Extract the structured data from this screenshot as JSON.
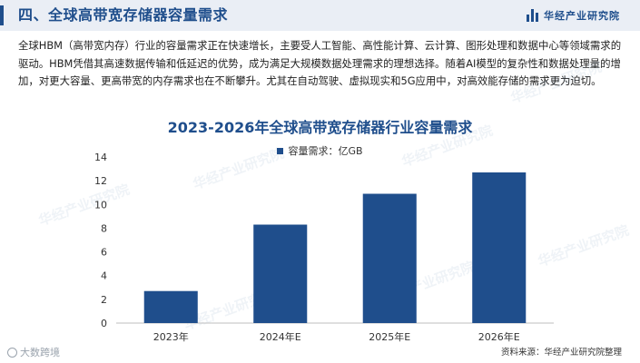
{
  "header": {
    "title": "四、全球高带宽存储器容量需求",
    "brand": "华经产业研究院"
  },
  "intro": "全球HBM（高带宽内存）行业的容量需求正在快速增长，主要受人工智能、高性能计算、云计算、图形处理和数据中心等领域需求的驱动。HBM凭借其高速数据传输和低延迟的优势，成为满足大规模数据处理需求的理想选择。随着AI模型的复杂性和数据处理量的增加，对更大容量、更高带宽的内存需求也在不断攀升。尤其在自动驾驶、虚拟现实和5G应用中，对高效能存储的需求更为迫切。",
  "watermark_text": "华经产业研究院",
  "corner_mark": "大数跨境",
  "source": "资料来源：华经产业研究院整理",
  "chart_data": {
    "type": "bar",
    "title": "2023-2026年全球高带宽存储器行业容量需求",
    "categories": [
      "2023年",
      "2024年E",
      "2025年E",
      "2026年E"
    ],
    "series": [
      {
        "name": "容量需求：亿GB",
        "values": [
          2.7,
          8.3,
          10.9,
          12.7
        ],
        "color": "#1f4e8c"
      }
    ],
    "ylim": [
      0,
      14
    ],
    "yticks": [
      "0",
      "2",
      "4",
      "6",
      "8",
      "10",
      "12",
      "14"
    ],
    "grid": false,
    "legend_position": "top-center"
  }
}
